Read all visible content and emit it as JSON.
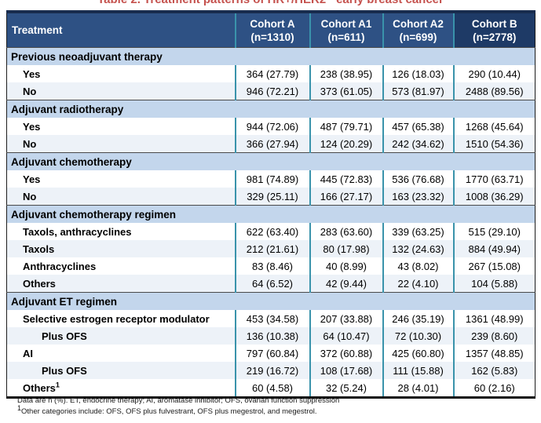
{
  "title": "Table 2. Treatment patterns of HR+/HER2− early breast cancer",
  "colors": {
    "header_bg": "#2e5184",
    "header_bg_dark": "#1e3a66",
    "section_bg": "#c3d6ec",
    "row_alt_bg": "#edf2f8",
    "divider_teal": "#3a93ab",
    "title_red": "#c5524e"
  },
  "table": {
    "corner_header": "Treatment",
    "columns": [
      {
        "name": "Cohort A",
        "n": "(n=1310)"
      },
      {
        "name": "Cohort A1",
        "n": "(n=611)"
      },
      {
        "name": "Cohort A2",
        "n": "(n=699)"
      },
      {
        "name": "Cohort B",
        "n": "(n=2778)"
      }
    ],
    "sections": [
      {
        "label": "Previous neoadjuvant therapy",
        "rows": [
          {
            "label": "Yes",
            "indent": 1,
            "values": [
              "364 (27.79)",
              "238 (38.95)",
              "126 (18.03)",
              "290 (10.44)"
            ]
          },
          {
            "label": "No",
            "indent": 1,
            "values": [
              "946 (72.21)",
              "373 (61.05)",
              "573 (81.97)",
              "2488 (89.56)"
            ]
          }
        ]
      },
      {
        "label": "Adjuvant radiotherapy",
        "rows": [
          {
            "label": "Yes",
            "indent": 1,
            "values": [
              "944 (72.06)",
              "487 (79.71)",
              "457 (65.38)",
              "1268 (45.64)"
            ]
          },
          {
            "label": "No",
            "indent": 1,
            "values": [
              "366 (27.94)",
              "124 (20.29)",
              "242 (34.62)",
              "1510 (54.36)"
            ]
          }
        ]
      },
      {
        "label": "Adjuvant chemotherapy",
        "rows": [
          {
            "label": "Yes",
            "indent": 1,
            "values": [
              "981 (74.89)",
              "445 (72.83)",
              "536 (76.68)",
              "1770 (63.71)"
            ]
          },
          {
            "label": "No",
            "indent": 1,
            "values": [
              "329 (25.11)",
              "166 (27.17)",
              "163 (23.32)",
              "1008 (36.29)"
            ]
          }
        ]
      },
      {
        "label": "Adjuvant chemotherapy regimen",
        "rows": [
          {
            "label": "Taxols, anthracyclines",
            "indent": 1,
            "values": [
              "622 (63.40)",
              "283 (63.60)",
              "339 (63.25)",
              "515 (29.10)"
            ]
          },
          {
            "label": "Taxols",
            "indent": 1,
            "values": [
              "212 (21.61)",
              "80 (17.98)",
              "132 (24.63)",
              "884 (49.94)"
            ]
          },
          {
            "label": "Anthracyclines",
            "indent": 1,
            "values": [
              "83 (8.46)",
              "40 (8.99)",
              "43 (8.02)",
              "267 (15.08)"
            ]
          },
          {
            "label": "Others",
            "indent": 1,
            "values": [
              "64 (6.52)",
              "42 (9.44)",
              "22 (4.10)",
              "104 (5.88)"
            ]
          }
        ]
      },
      {
        "label": "Adjuvant ET regimen",
        "rows": [
          {
            "label": "Selective estrogen receptor modulator",
            "indent": 1,
            "values": [
              "453 (34.58)",
              "207 (33.88)",
              "246 (35.19)",
              "1361 (48.99)"
            ]
          },
          {
            "label": "Plus OFS",
            "indent": 2,
            "values": [
              "136 (10.38)",
              "64 (10.47)",
              "72 (10.30)",
              "239 (8.60)"
            ]
          },
          {
            "label": "AI",
            "indent": 1,
            "values": [
              "797 (60.84)",
              "372 (60.88)",
              "425 (60.80)",
              "1357 (48.85)"
            ]
          },
          {
            "label": "Plus OFS",
            "indent": 2,
            "values": [
              "219 (16.72)",
              "108 (17.68)",
              "111 (15.88)",
              "162 (5.83)"
            ]
          },
          {
            "label": "Others",
            "sup": "1",
            "indent": 1,
            "values": [
              "60 (4.58)",
              "32 (5.24)",
              "28 (4.01)",
              "60 (2.16)"
            ]
          }
        ]
      }
    ]
  },
  "footnotes": [
    {
      "text": "Data are n (%). ET, endocrine therapy; AI, aromatase inhibitor; OFS, ovarian function suppression"
    },
    {
      "sup": "1",
      "text": "Other categories include: OFS, OFS plus fulvestrant, OFS plus megestrol, and megestrol."
    }
  ]
}
